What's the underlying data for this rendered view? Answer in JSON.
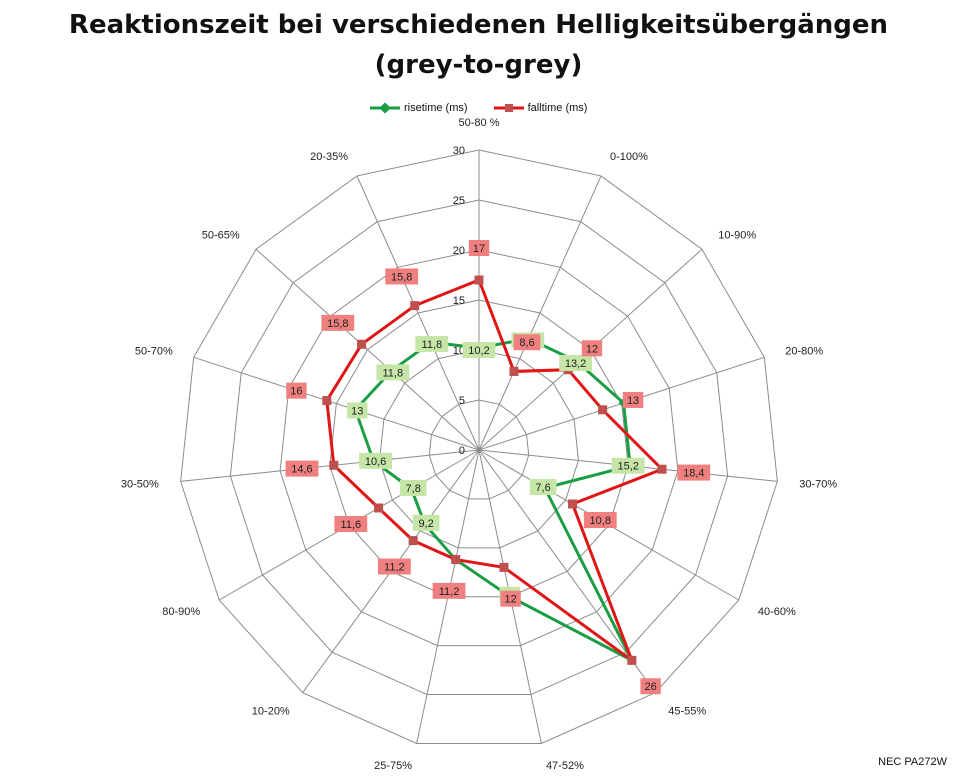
{
  "chart_data": {
    "type": "radar",
    "title": "Reaktionszeit bei verschiedenen Helligkeitsübergängen",
    "subtitle": "(grey-to-grey)",
    "categories": [
      "50-80 %",
      "0-100%",
      "10-90%",
      "20-80%",
      "30-70%",
      "40-60%",
      "45-55%",
      "47-52%",
      "25-75%",
      "10-20%",
      "80-90%",
      "30-50%",
      "50-70%",
      "50-65%",
      "20-35%"
    ],
    "rlim": [
      0,
      30
    ],
    "rticks": [
      "0",
      "5",
      "10",
      "15",
      "20",
      "25",
      "30"
    ],
    "series": [
      {
        "name": "risetime (ms)",
        "color": "#1a9e44",
        "marker": "diamond",
        "values": [
          10.2,
          12.2,
          13.2,
          15.2,
          15.2,
          7.6,
          26,
          15,
          11.2,
          9.2,
          7.8,
          10.6,
          13,
          11.8,
          11.8
        ],
        "labels": [
          "10,2",
          "12,2",
          "13,2",
          "",
          "15,2",
          "7,6",
          "",
          "15",
          "",
          "9,2",
          "7,8",
          "10,6",
          "13",
          "11,8",
          "11,8"
        ]
      },
      {
        "name": "falltime (ms)",
        "color": "#e01515",
        "marker": "square",
        "values": [
          17,
          8.6,
          12,
          13,
          18.4,
          10.8,
          26,
          12,
          11.2,
          11.2,
          11.6,
          14.6,
          16,
          15.8,
          15.8
        ],
        "labels": [
          "17",
          "8,6",
          "12",
          "13",
          "18,4",
          "10,8",
          "26",
          "12",
          "11,2",
          "11,2",
          "11,6",
          "14,6",
          "16",
          "15,8",
          "15,8"
        ]
      }
    ],
    "grid": true,
    "legend_position": "top"
  },
  "footer": "NEC PA272W"
}
